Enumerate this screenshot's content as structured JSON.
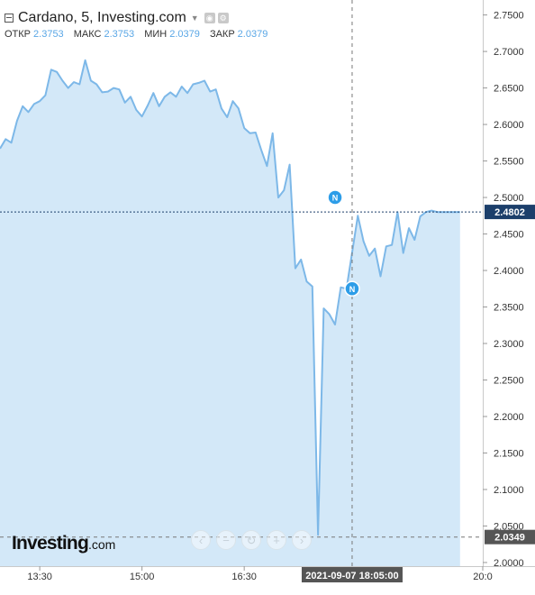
{
  "header": {
    "title": "Cardano, 5, Investing.com",
    "ohlc": [
      {
        "label": "ОТКР",
        "value": "2.3753"
      },
      {
        "label": "МАКС",
        "value": "2.3753"
      },
      {
        "label": "МИН",
        "value": "2.0379"
      },
      {
        "label": "ЗАКР",
        "value": "2.0379"
      }
    ]
  },
  "logo": {
    "main": "Investing",
    "suffix": ".com"
  },
  "nav": [
    {
      "name": "scroll-left-button",
      "glyph": "‹"
    },
    {
      "name": "zoom-out-button",
      "glyph": "−"
    },
    {
      "name": "reset-button",
      "glyph": "↻"
    },
    {
      "name": "zoom-in-button",
      "glyph": "+"
    },
    {
      "name": "scroll-right-button",
      "glyph": "›"
    }
  ],
  "colors": {
    "line": "#7db8e8",
    "fill": "#d3e8f8",
    "badge": "#2d9de8",
    "label_bg": "#1c3f6b"
  },
  "chart_data": {
    "type": "area",
    "ylim": [
      1.995,
      2.7705
    ],
    "xlim": [
      "12:55",
      "20:00"
    ],
    "y_ticks": [
      "2.7500",
      "2.7000",
      "2.6500",
      "2.6000",
      "2.5500",
      "2.5000",
      "2.4500",
      "2.4000",
      "2.3500",
      "2.3000",
      "2.2500",
      "2.2000",
      "2.1500",
      "2.1000",
      "2.0500",
      "2.0000"
    ],
    "x_ticks": [
      "13:30",
      "15:00",
      "16:30",
      "20:0"
    ],
    "crosshair_time_label": "2021-09-07 18:05:00",
    "crosshair_time": "18:05",
    "current_price_label": "2.4802",
    "current_price": 2.4802,
    "crosshair_price_label": "2.0349",
    "crosshair_price": 2.0349,
    "news_markers": [
      {
        "x": "17:50",
        "y": 2.5,
        "label": "N"
      },
      {
        "x": "18:05",
        "y": 2.375,
        "label": "N"
      }
    ],
    "x": [
      "12:55",
      "13:00",
      "13:05",
      "13:10",
      "13:15",
      "13:20",
      "13:25",
      "13:30",
      "13:35",
      "13:40",
      "13:45",
      "13:50",
      "13:55",
      "14:00",
      "14:05",
      "14:10",
      "14:15",
      "14:20",
      "14:25",
      "14:30",
      "14:35",
      "14:40",
      "14:45",
      "14:50",
      "14:55",
      "15:00",
      "15:05",
      "15:10",
      "15:15",
      "15:20",
      "15:25",
      "15:30",
      "15:35",
      "15:40",
      "15:45",
      "15:50",
      "15:55",
      "16:00",
      "16:05",
      "16:10",
      "16:15",
      "16:20",
      "16:25",
      "16:30",
      "16:35",
      "16:40",
      "16:45",
      "16:50",
      "16:55",
      "17:00",
      "17:05",
      "17:10",
      "17:15",
      "17:20",
      "17:25",
      "17:30",
      "17:35",
      "17:40",
      "17:45",
      "17:50",
      "17:55",
      "18:00",
      "18:05",
      "18:10",
      "18:15",
      "18:20",
      "18:25",
      "18:30",
      "18:35",
      "18:40",
      "18:45",
      "18:50",
      "18:55",
      "19:00",
      "19:05",
      "19:10",
      "19:15",
      "19:20",
      "19:25",
      "19:30",
      "19:35",
      "19:40"
    ],
    "series": [
      {
        "values": [
          2.567,
          2.58,
          2.575,
          2.605,
          2.625,
          2.617,
          2.628,
          2.632,
          2.64,
          2.675,
          2.672,
          2.66,
          2.65,
          2.658,
          2.655,
          2.688,
          2.66,
          2.655,
          2.644,
          2.645,
          2.65,
          2.648,
          2.63,
          2.638,
          2.62,
          2.611,
          2.626,
          2.643,
          2.625,
          2.638,
          2.644,
          2.638,
          2.652,
          2.643,
          2.655,
          2.657,
          2.66,
          2.645,
          2.648,
          2.622,
          2.61,
          2.632,
          2.622,
          2.595,
          2.588,
          2.589,
          2.565,
          2.543,
          2.588,
          2.5,
          2.51,
          2.545,
          2.403,
          2.415,
          2.385,
          2.378,
          2.038,
          2.348,
          2.34,
          2.326,
          2.377,
          2.375,
          2.425,
          2.475,
          2.44,
          2.42,
          2.43,
          2.392,
          2.433,
          2.435,
          2.48,
          2.424,
          2.458,
          2.442,
          2.474,
          2.48,
          2.482,
          2.48,
          2.48,
          2.48,
          2.48,
          2.48
        ]
      }
    ]
  }
}
